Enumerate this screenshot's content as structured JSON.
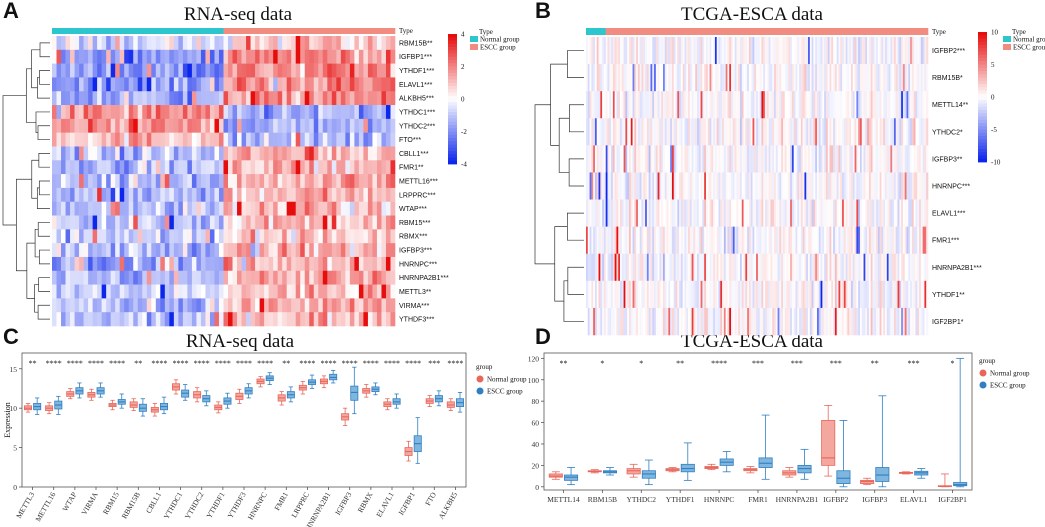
{
  "panels": {
    "A": {
      "label": "A",
      "title": "RNA-seq data"
    },
    "B": {
      "label": "B",
      "title": "TCGA-ESCA data"
    },
    "C": {
      "label": "C",
      "title": "RNA-seq data"
    },
    "D": {
      "label": "D",
      "title": "TCGA-ESCA data"
    }
  },
  "colors": {
    "normal": "#e8675b",
    "escc": "#2f7fc1",
    "normal_fill": "#f3a79f",
    "escc_fill": "#7fb6e0",
    "type_normal": "#2dc6cf",
    "type_escc": "#f08c80",
    "heat_high": "#e8231c",
    "heat_low": "#1c2ee8"
  },
  "chart_data": [
    {
      "type": "heatmap",
      "id": "A",
      "title": "RNA-seq data",
      "type_label": "Type",
      "columns": {
        "normal_count": 38,
        "escc_count": 38
      },
      "rows": [
        "RBM15B**",
        "IGFBP1***",
        "YTHDF1***",
        "ELAVL1***",
        "ALKBH5***",
        "YTHDC1***",
        "YTHDC2***",
        "FTO***",
        "CBLL1***",
        "FMR1**",
        "METTL16***",
        "LRPPRC***",
        "WTAP***",
        "RBM15***",
        "RBMX***",
        "IGFBP3***",
        "HNRNPC***",
        "HNRNPA2B1***",
        "METTL3**",
        "VIRMA***",
        "YTHDF3***"
      ],
      "row_bias": [
        0.3,
        0.9,
        0.9,
        0.9,
        0.8,
        -0.8,
        -0.7,
        -0.6,
        0.6,
        0.6,
        0.6,
        0.6,
        0.5,
        0.5,
        0.5,
        0.6,
        0.7,
        0.7,
        0.5,
        0.6,
        0.6
      ],
      "colorbar": {
        "ticks": [
          "4",
          "2",
          "0",
          "-2",
          "-4"
        ],
        "range": [
          -4,
          4
        ]
      },
      "legend": {
        "title": "Type",
        "items": [
          "Normal group",
          "ESCC group"
        ]
      }
    },
    {
      "type": "heatmap",
      "id": "B",
      "title": "TCGA-ESCA data",
      "type_label": "Type",
      "columns": {
        "normal_count": 11,
        "escc_count": 180
      },
      "rows": [
        "IGFBP2***",
        "RBM15B*",
        "METTL14**",
        "YTHDC2*",
        "IGFBP3**",
        "HNRNPC***",
        "ELAVL1***",
        "FMR1***",
        "HNRNPA2B1***",
        "YTHDF1**",
        "IGF2BP1*"
      ],
      "colorbar": {
        "ticks": [
          "10",
          "5",
          "0",
          "-5",
          "-10"
        ],
        "range": [
          -10,
          10
        ]
      },
      "legend": {
        "title": "Type",
        "items": [
          "Normal group",
          "ESCC group"
        ]
      }
    },
    {
      "type": "boxplot",
      "id": "C",
      "title": "RNA-seq data",
      "ylabel": "Expression",
      "ylim": [
        0,
        17
      ],
      "yticks": [
        0,
        5,
        10,
        15
      ],
      "legend_title": "group",
      "legend": [
        "Normal group",
        "ESCC group"
      ],
      "categories": [
        "METTL3",
        "METTL16",
        "WTAP",
        "VIRMA",
        "RBM15",
        "RBM15B",
        "CBLL1",
        "YTHDC1",
        "YTHDC2",
        "YTHDF1",
        "YTHDF3",
        "HNRNPC",
        "FMR1",
        "LRPPRC",
        "HNRNPA2B1",
        "IGFBP3",
        "RBMX",
        "ELAVL1",
        "IGFBP1",
        "FTO",
        "ALKBH5"
      ],
      "significance": [
        "**",
        "****",
        "****",
        "****",
        "****",
        "**",
        "****",
        "****",
        "****",
        "****",
        "****",
        "****",
        "**",
        "****",
        "****",
        "****",
        "****",
        "****",
        "****",
        "***",
        "****"
      ],
      "series": [
        {
          "name": "Normal group",
          "boxes": [
            [
              9.5,
              9.8,
              10.0,
              10.3,
              10.6
            ],
            [
              9.3,
              9.7,
              10.0,
              10.3,
              10.7
            ],
            [
              11.2,
              11.5,
              11.8,
              12.1,
              12.5
            ],
            [
              11.0,
              11.4,
              11.7,
              12.0,
              12.4
            ],
            [
              9.8,
              10.2,
              10.4,
              10.6,
              11.0
            ],
            [
              9.7,
              10.1,
              10.4,
              10.8,
              11.2
            ],
            [
              9.0,
              9.5,
              9.8,
              10.1,
              10.6
            ],
            [
              11.8,
              12.3,
              12.7,
              13.1,
              13.6
            ],
            [
              10.8,
              11.3,
              11.7,
              12.1,
              12.6
            ],
            [
              9.4,
              9.8,
              10.1,
              10.4,
              10.8
            ],
            [
              10.6,
              11.1,
              11.5,
              11.9,
              12.4
            ],
            [
              12.7,
              13.1,
              13.4,
              13.7,
              14.0
            ],
            [
              10.4,
              10.9,
              11.3,
              11.7,
              12.1
            ],
            [
              11.8,
              12.3,
              12.6,
              12.9,
              13.4
            ],
            [
              12.6,
              13.1,
              13.4,
              13.7,
              14.1
            ],
            [
              7.8,
              8.5,
              8.9,
              9.3,
              10.0
            ],
            [
              11.4,
              11.9,
              12.2,
              12.5,
              13.0
            ],
            [
              9.8,
              10.2,
              10.5,
              10.8,
              11.2
            ],
            [
              3.3,
              4.0,
              4.5,
              5.0,
              5.8
            ],
            [
              10.2,
              10.6,
              10.9,
              11.2,
              11.6
            ],
            [
              9.7,
              10.1,
              10.4,
              10.8,
              11.2
            ]
          ]
        },
        {
          "name": "ESCC group",
          "boxes": [
            [
              9.2,
              9.8,
              10.2,
              10.6,
              11.3
            ],
            [
              9.2,
              9.9,
              10.4,
              10.9,
              11.5
            ],
            [
              11.3,
              11.8,
              12.2,
              12.6,
              13.2
            ],
            [
              11.4,
              11.8,
              12.2,
              12.6,
              13.2
            ],
            [
              10.0,
              10.5,
              10.8,
              11.1,
              11.8
            ],
            [
              9.0,
              9.6,
              10.0,
              10.5,
              11.2
            ],
            [
              9.3,
              9.8,
              10.2,
              10.6,
              11.4
            ],
            [
              11.0,
              11.4,
              11.9,
              12.3,
              13.0
            ],
            [
              10.3,
              10.8,
              11.2,
              11.6,
              12.2
            ],
            [
              10.0,
              10.5,
              10.9,
              11.3,
              11.9
            ],
            [
              11.3,
              11.8,
              12.2,
              12.6,
              13.1
            ],
            [
              13.0,
              13.5,
              13.8,
              14.1,
              14.5
            ],
            [
              10.8,
              11.3,
              11.7,
              12.1,
              12.7
            ],
            [
              12.5,
              13.0,
              13.3,
              13.6,
              14.2
            ],
            [
              13.2,
              13.6,
              13.9,
              14.3,
              14.8
            ],
            [
              9.3,
              11.0,
              12.0,
              12.8,
              15.2
            ],
            [
              11.7,
              12.1,
              12.4,
              12.7,
              13.2
            ],
            [
              10.0,
              10.5,
              10.8,
              11.2,
              11.8
            ],
            [
              3.0,
              4.5,
              5.5,
              6.5,
              8.8
            ],
            [
              10.3,
              10.8,
              11.2,
              11.6,
              12.2
            ],
            [
              9.5,
              10.2,
              10.7,
              11.2,
              12.0
            ]
          ]
        }
      ]
    },
    {
      "type": "boxplot",
      "id": "D",
      "title": "TCGA-ESCA data",
      "ylim": [
        -3,
        125
      ],
      "yticks": [
        0,
        20,
        40,
        60,
        80,
        100,
        120
      ],
      "legend_title": "group",
      "legend": [
        "Normal group",
        "ESCC group"
      ],
      "categories": [
        "METTL14",
        "RBM15B",
        "YTHDC2",
        "YTHDF1",
        "HNRNPC",
        "FMR1",
        "HNRNPA2B1",
        "IGFBP2",
        "IGFBP3",
        "ELAVL1",
        "IGF2BP1"
      ],
      "significance": [
        "**",
        "*",
        "*",
        "**",
        "****",
        "***",
        "***",
        "***",
        "**",
        "***",
        "*"
      ],
      "series": [
        {
          "name": "Normal group",
          "boxes": [
            [
              7,
              9,
              10,
              12,
              14
            ],
            [
              13,
              14,
              14.5,
              15,
              16
            ],
            [
              9,
              12,
              15,
              17,
              21
            ],
            [
              14,
              15,
              16,
              17,
              18
            ],
            [
              16,
              17,
              18,
              19,
              21
            ],
            [
              13,
              15,
              16,
              17,
              19
            ],
            [
              9,
              11,
              13,
              15,
              18
            ],
            [
              10,
              20,
              27,
              62,
              76
            ],
            [
              2,
              3,
              5,
              6,
              8
            ],
            [
              12,
              12.5,
              13,
              13.5,
              14
            ],
            [
              0,
              0.2,
              0.5,
              1,
              12
            ]
          ]
        },
        {
          "name": "ESCC group",
          "boxes": [
            [
              2,
              6,
              9,
              11,
              18
            ],
            [
              11,
              13,
              14,
              15,
              18
            ],
            [
              2,
              8,
              12,
              15,
              25
            ],
            [
              6,
              14,
              17,
              21,
              41
            ],
            [
              14,
              20,
              23,
              26,
              33
            ],
            [
              7,
              18,
              22,
              27,
              67
            ],
            [
              7,
              13,
              17,
              20,
              35
            ],
            [
              0,
              3,
              8,
              15,
              62
            ],
            [
              0,
              5,
              11,
              18,
              85
            ],
            [
              8,
              11,
              13,
              14.5,
              17
            ],
            [
              0,
              1,
              2,
              4,
              120
            ]
          ]
        }
      ]
    }
  ]
}
